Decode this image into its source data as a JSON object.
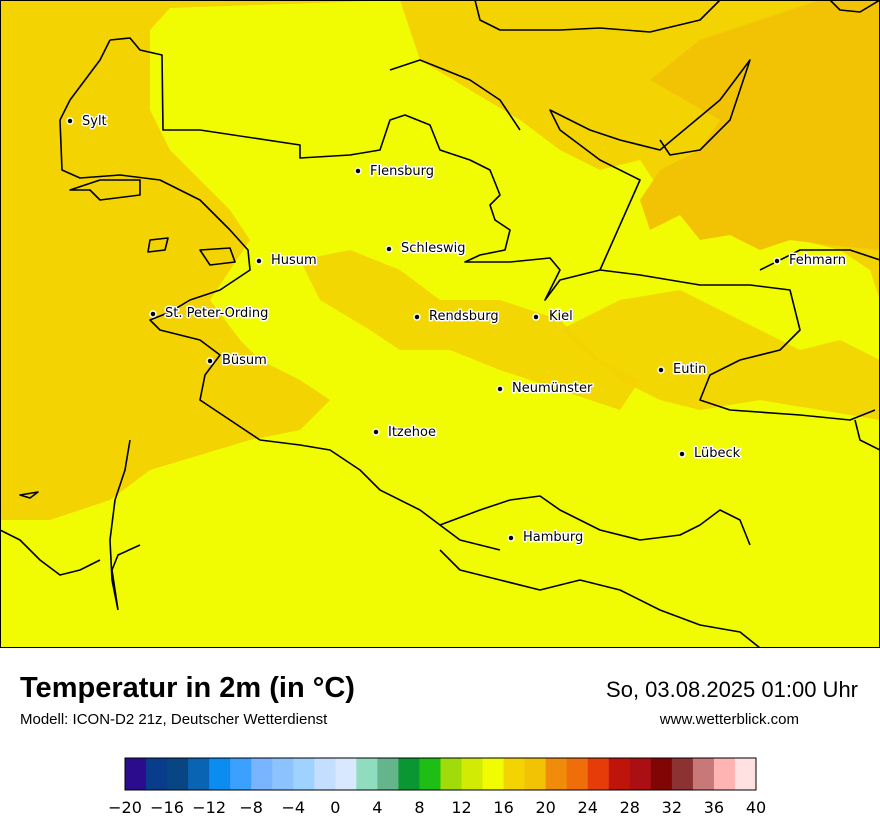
{
  "title": "Temperatur in 2m (in °C)",
  "subtitle": "Modell: ICON-D2 21z, Deutscher Wetterdienst",
  "datetime": "So, 03.08.2025 01:00 Uhr",
  "website": "www.wetterblick.com",
  "map": {
    "region": "Schleswig-Holstein",
    "field": "2m temperature",
    "field_colors": {
      "sea_band": "#f3d302",
      "land_band": "#f1fc02",
      "warm_band": "#f2c205"
    },
    "cities": [
      {
        "name": "Sylt"
      },
      {
        "name": "Flensburg"
      },
      {
        "name": "Schleswig"
      },
      {
        "name": "Husum"
      },
      {
        "name": "Fehmarn"
      },
      {
        "name": "St. Peter-Ording"
      },
      {
        "name": "Rendsburg"
      },
      {
        "name": "Kiel"
      },
      {
        "name": "Büsum"
      },
      {
        "name": "Eutin"
      },
      {
        "name": "Neumünster"
      },
      {
        "name": "Itzehoe"
      },
      {
        "name": "Lübeck"
      },
      {
        "name": "Hamburg"
      }
    ]
  },
  "legend": {
    "colors": [
      "#2a0c8c",
      "#0a3c8c",
      "#074682",
      "#0a64b4",
      "#0a8cf0",
      "#3ca0ff",
      "#78b4ff",
      "#8cc3ff",
      "#a0d2ff",
      "#c3deff",
      "#d7e8ff",
      "#8fdcbe",
      "#64b48c",
      "#0a9632",
      "#1ebe14",
      "#a0dc0a",
      "#d2eb05",
      "#f1fc02",
      "#f3d302",
      "#f2c205",
      "#f08c0a",
      "#f06e0a",
      "#e63c0a",
      "#be140a",
      "#aa0f14",
      "#820505",
      "#8c3232",
      "#c87878",
      "#ffb4b4",
      "#ffe1e1"
    ],
    "ticks": [
      "−20",
      "−16",
      "−12",
      "−8",
      "−4",
      "0",
      "4",
      "8",
      "12",
      "16",
      "20",
      "24",
      "28",
      "32",
      "36",
      "40"
    ]
  }
}
